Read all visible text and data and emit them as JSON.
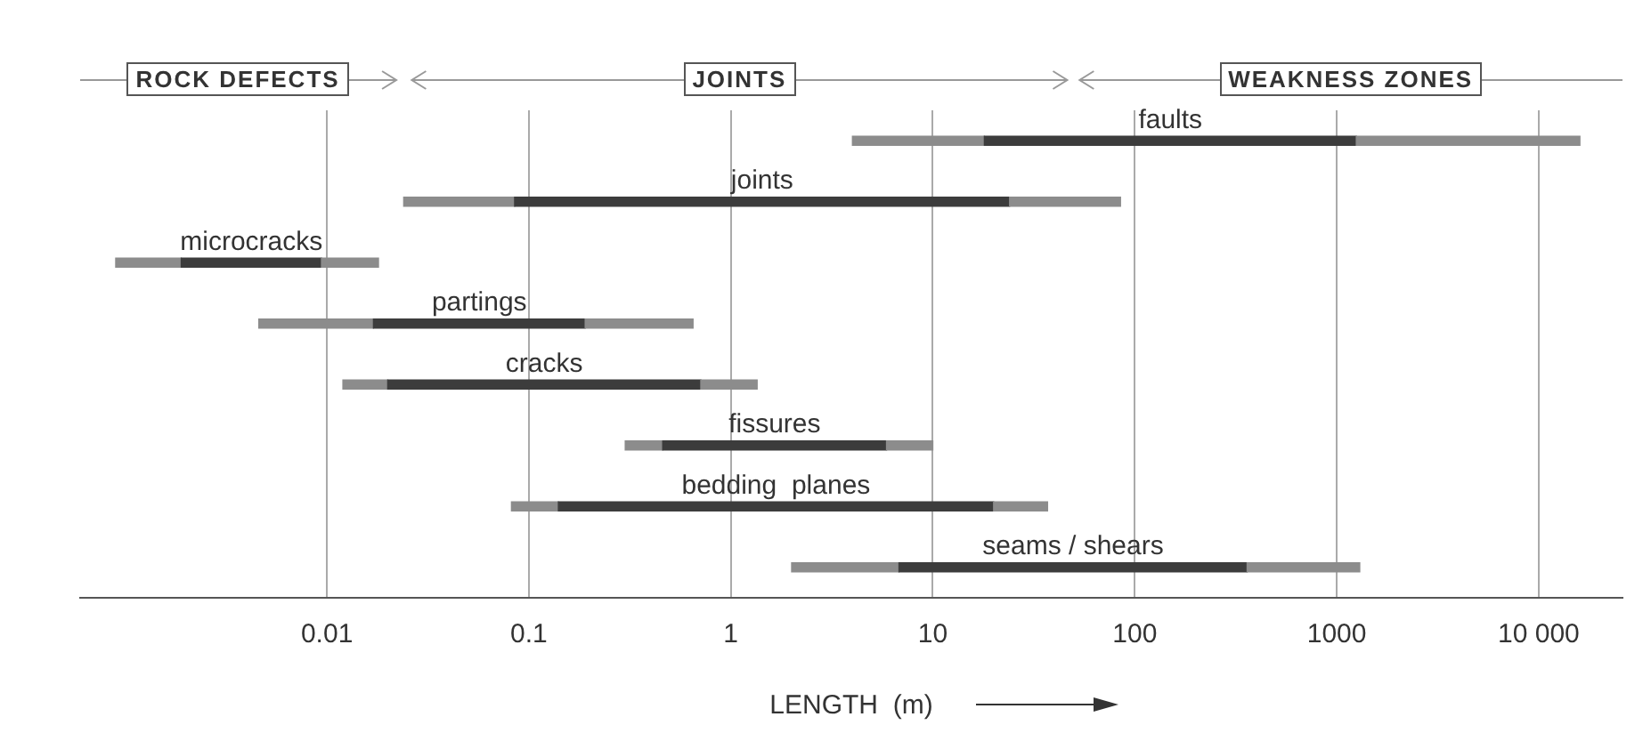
{
  "chart_data": {
    "type": "bar",
    "orientation": "horizontal",
    "xlabel": "LENGTH  (m)",
    "annotations": [
      "ROCK DEFECTS",
      "JOINTS",
      "WEAKNESS ZONES"
    ],
    "categories": [
      "faults",
      "joints",
      "microcracks",
      "partings",
      "cracks",
      "fissures",
      "bedding  planes",
      "seams / shears"
    ],
    "series": [
      {
        "color": "#8c8c8c",
        "base": [
          4,
          0.024,
          0.0009,
          0.0046,
          0.012,
          0.3,
          0.082,
          2
        ],
        "values": [
          14,
          0.061,
          0.001,
          0.0124,
          0.008,
          0.16,
          0.058,
          4.8
        ]
      },
      {
        "color": "#3c3c3c",
        "base": [
          18,
          0.085,
          0.0019,
          0.017,
          0.02,
          0.46,
          0.14,
          6.8
        ],
        "values": [
          1232,
          23.915,
          0.0075,
          0.173,
          0.69,
          5.44,
          19.86,
          353.2
        ]
      },
      {
        "color": "#8c8c8c",
        "base": [
          1250,
          24,
          0.0094,
          0.19,
          0.71,
          5.9,
          20,
          360
        ],
        "values": [
          14750,
          61,
          0.0086,
          0.46,
          0.64,
          4.1,
          17,
          940
        ]
      }
    ],
    "log": "x",
    "xlim": [
      0.0006,
      26000
    ],
    "xticks": [
      0.01,
      0.1,
      1,
      10,
      100,
      1000,
      {
        "value": 10000,
        "label": "10 000"
      }
    ],
    "grid": "x",
    "tick_labels": "x",
    "legend": false
  }
}
